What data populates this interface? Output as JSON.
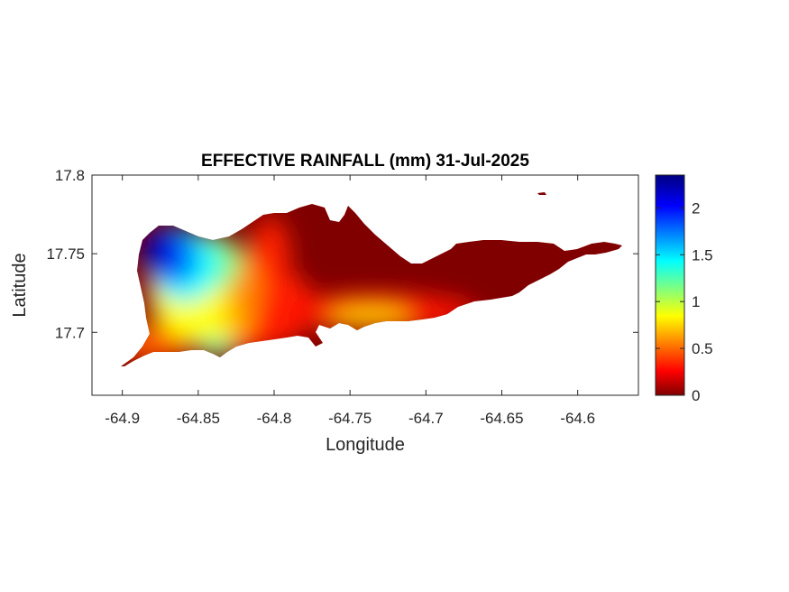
{
  "chart_data": {
    "type": "heatmap",
    "title": "EFFECTIVE RAINFALL (mm) 31-Jul-2025",
    "xlabel": "Longitude",
    "ylabel": "Latitude",
    "xlim": [
      -64.92,
      -64.56
    ],
    "ylim": [
      17.66,
      17.8
    ],
    "x_ticks": [
      "-64.9",
      "-64.85",
      "-64.8",
      "-64.75",
      "-64.7",
      "-64.65",
      "-64.6"
    ],
    "y_ticks": [
      "17.7",
      "17.75",
      "17.8"
    ],
    "colorbar": {
      "colormap": "jet",
      "range": [
        0,
        2.35
      ],
      "ticks": [
        "0",
        "0.5",
        "1",
        "1.5",
        "2"
      ]
    },
    "rainfall_hotspots": [
      {
        "lon": -64.877,
        "lat": 17.748,
        "value_mm": 2.35
      },
      {
        "lon": -64.845,
        "lat": 17.692,
        "value_mm": 1.4
      },
      {
        "lon": -64.84,
        "lat": 17.735,
        "value_mm": 1.1
      },
      {
        "lon": -64.73,
        "lat": 17.707,
        "value_mm": 0.9
      },
      {
        "lon": -64.885,
        "lat": 17.712,
        "value_mm": 0.6
      }
    ],
    "background_value_mm": 0
  }
}
